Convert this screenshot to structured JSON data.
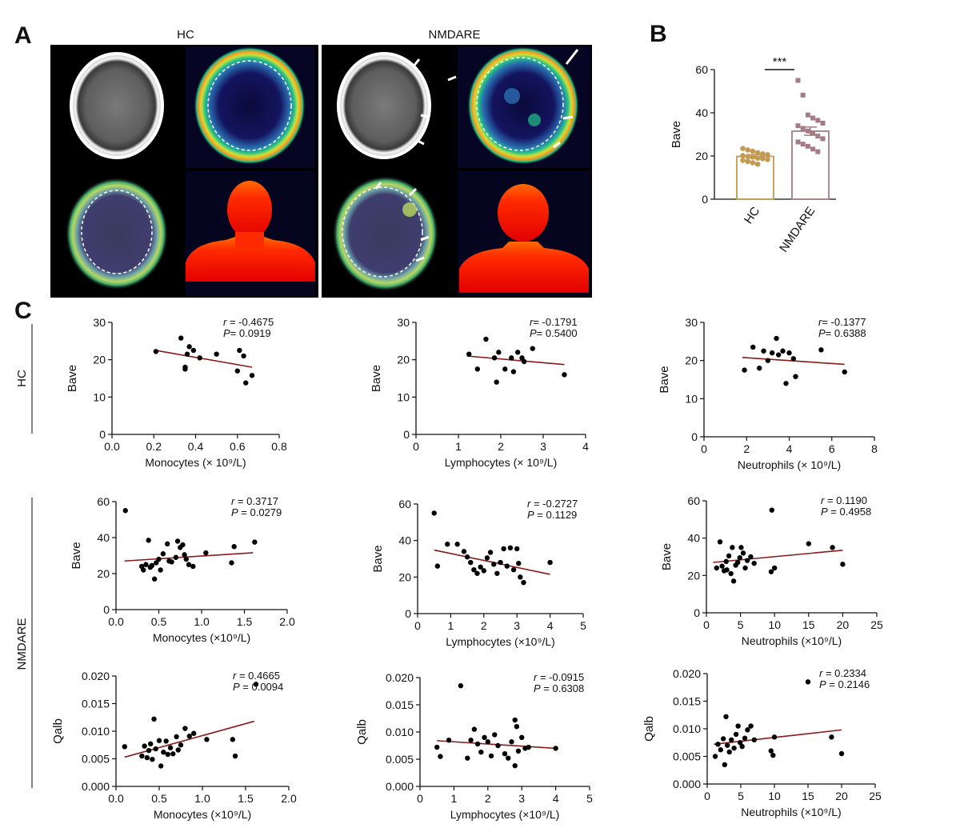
{
  "figure": {
    "panel_letters": [
      "A",
      "B",
      "C"
    ],
    "panelA": {
      "col_labels": [
        "HC",
        "NMDARE"
      ]
    },
    "row_labels": [
      "HC",
      "NMDARE"
    ]
  },
  "chart_data": [
    {
      "id": "B",
      "type": "bar",
      "categories": [
        "HC",
        "NMDARE"
      ],
      "values": [
        19.8,
        31.5
      ],
      "errors": [
        0.8,
        1.9
      ],
      "points": [
        [
          23.5,
          22.8,
          22.2,
          21.5,
          21.0,
          20.6,
          20.2,
          19.8,
          19.5,
          19.0,
          18.8,
          18.4,
          18.0,
          17.5,
          16.9,
          16.2
        ],
        [
          55.0,
          48.2,
          39.0,
          37.6,
          36.5,
          35.2,
          34.0,
          32.8,
          31.6,
          30.5,
          29.2,
          28.0,
          26.5,
          25.5,
          24.5,
          23.2,
          22.0
        ]
      ],
      "colors": [
        "#c29a52",
        "#a47c84"
      ],
      "significance": "***",
      "ylabel": "Bave",
      "ylim": [
        0,
        60
      ],
      "yticks": [
        0,
        20,
        40,
        60
      ]
    },
    {
      "id": "C_HC_Mono",
      "type": "scatter",
      "xlabel": "Monocytes (× 10⁹/L)",
      "ylabel": "Bave",
      "xlim": [
        0,
        0.8
      ],
      "xticks": [
        "0.0",
        "0.2",
        "0.4",
        "0.6",
        "0.8"
      ],
      "ylim": [
        0,
        30
      ],
      "yticks": [
        "0",
        "10",
        "20",
        "30"
      ],
      "r_label": "r",
      "r_text": " = -0.4675",
      "p_label": "P",
      "p_text": "= 0.0919",
      "fit": [
        [
          0.2,
          22.6
        ],
        [
          0.67,
          18.0
        ]
      ],
      "points": [
        [
          0.21,
          22.2
        ],
        [
          0.33,
          25.8
        ],
        [
          0.35,
          17.5
        ],
        [
          0.35,
          18.0
        ],
        [
          0.36,
          21.5
        ],
        [
          0.37,
          23.5
        ],
        [
          0.39,
          22.5
        ],
        [
          0.42,
          20.5
        ],
        [
          0.5,
          21.5
        ],
        [
          0.6,
          17.0
        ],
        [
          0.61,
          22.5
        ],
        [
          0.63,
          21.0
        ],
        [
          0.64,
          13.8
        ],
        [
          0.67,
          15.8
        ]
      ]
    },
    {
      "id": "C_HC_Lymph",
      "type": "scatter",
      "xlabel": "Lymphocytes (× 10⁹/L)",
      "ylabel": "Bave",
      "xlim": [
        0,
        4
      ],
      "xticks": [
        "0",
        "1",
        "2",
        "3",
        "4"
      ],
      "ylim": [
        0,
        30
      ],
      "yticks": [
        "0",
        "10",
        "20",
        "30"
      ],
      "r_label": "r",
      "r_text": "= -0.1791",
      "p_label": "P",
      "p_text": "= 0.5400",
      "fit": [
        [
          1.2,
          21.0
        ],
        [
          3.5,
          18.7
        ]
      ],
      "points": [
        [
          1.25,
          21.5
        ],
        [
          1.45,
          17.5
        ],
        [
          1.65,
          25.5
        ],
        [
          1.85,
          20.5
        ],
        [
          1.9,
          14.0
        ],
        [
          1.95,
          22.0
        ],
        [
          2.1,
          17.5
        ],
        [
          2.25,
          20.5
        ],
        [
          2.3,
          16.8
        ],
        [
          2.4,
          22.0
        ],
        [
          2.5,
          20.5
        ],
        [
          2.55,
          19.5
        ],
        [
          2.75,
          23.0
        ],
        [
          3.5,
          16.0
        ]
      ]
    },
    {
      "id": "C_HC_Neut",
      "type": "scatter",
      "xlabel": "Neutrophils (× 10⁹/L)",
      "ylabel": "Bave",
      "xlim": [
        0,
        8
      ],
      "xticks": [
        "0",
        "2",
        "4",
        "6",
        "8"
      ],
      "ylim": [
        0,
        30
      ],
      "yticks": [
        "0",
        "10",
        "20",
        "30"
      ],
      "r_label": "r",
      "r_text": "= -0.1377",
      "p_label": "P",
      "p_text": "= 0.6388",
      "fit": [
        [
          1.8,
          20.8
        ],
        [
          6.6,
          19.0
        ]
      ],
      "points": [
        [
          1.9,
          17.5
        ],
        [
          2.3,
          23.5
        ],
        [
          2.6,
          18.0
        ],
        [
          2.8,
          22.5
        ],
        [
          3.0,
          20.0
        ],
        [
          3.2,
          22.0
        ],
        [
          3.4,
          25.8
        ],
        [
          3.5,
          21.5
        ],
        [
          3.7,
          22.5
        ],
        [
          3.85,
          14.0
        ],
        [
          4.0,
          22.0
        ],
        [
          4.2,
          20.5
        ],
        [
          4.3,
          15.8
        ],
        [
          5.5,
          22.8
        ],
        [
          6.6,
          17.0
        ]
      ]
    },
    {
      "id": "C_NM_Mono_Bave",
      "type": "scatter",
      "xlabel": "Monocytes (×10⁹/L)",
      "ylabel": "Bave",
      "xlim": [
        0,
        2.0
      ],
      "xticks": [
        "0.0",
        "0.5",
        "1.0",
        "1.5",
        "2.0"
      ],
      "ylim": [
        0,
        60
      ],
      "yticks": [
        "0",
        "20",
        "40",
        "60"
      ],
      "r_label": "r",
      "r_text": " = 0.3717",
      "p_label": "P",
      "p_text": " = 0.0279",
      "fit": [
        [
          0.1,
          27.0
        ],
        [
          1.6,
          31.6
        ]
      ],
      "points": [
        [
          0.11,
          55.0
        ],
        [
          0.3,
          24.0
        ],
        [
          0.32,
          22.0
        ],
        [
          0.35,
          25.0
        ],
        [
          0.38,
          38.5
        ],
        [
          0.4,
          23.5
        ],
        [
          0.42,
          24.5
        ],
        [
          0.45,
          17.0
        ],
        [
          0.47,
          26.0
        ],
        [
          0.5,
          28.0
        ],
        [
          0.52,
          22.0
        ],
        [
          0.55,
          31.0
        ],
        [
          0.6,
          36.5
        ],
        [
          0.62,
          27.0
        ],
        [
          0.65,
          26.5
        ],
        [
          0.7,
          29.0
        ],
        [
          0.72,
          38.0
        ],
        [
          0.75,
          34.5
        ],
        [
          0.78,
          36.0
        ],
        [
          0.8,
          30.5
        ],
        [
          0.82,
          28.0
        ],
        [
          0.85,
          25.0
        ],
        [
          0.9,
          24.0
        ],
        [
          1.05,
          31.5
        ],
        [
          1.35,
          26.0
        ],
        [
          1.38,
          35.0
        ],
        [
          1.62,
          37.5
        ]
      ]
    },
    {
      "id": "C_NM_Lymph_Bave",
      "type": "scatter",
      "xlabel": "Lymphocytes (×10⁹/L)",
      "ylabel": "Bave",
      "xlim": [
        0,
        5
      ],
      "xticks": [
        "0",
        "1",
        "2",
        "3",
        "4",
        "5"
      ],
      "ylim": [
        0,
        60
      ],
      "yticks": [
        "0",
        "20",
        "40",
        "60"
      ],
      "r_label": "r",
      "r_text": " = -0.2727",
      "p_label": "P",
      "p_text": " = 0.1129",
      "fit": [
        [
          0.5,
          34.8
        ],
        [
          4.0,
          21.5
        ]
      ],
      "points": [
        [
          0.5,
          55.0
        ],
        [
          0.6,
          26.0
        ],
        [
          0.9,
          38.0
        ],
        [
          1.2,
          38.0
        ],
        [
          1.4,
          34.0
        ],
        [
          1.5,
          31.0
        ],
        [
          1.6,
          28.0
        ],
        [
          1.7,
          24.0
        ],
        [
          1.8,
          22.0
        ],
        [
          1.9,
          25.5
        ],
        [
          2.0,
          23.5
        ],
        [
          2.1,
          30.5
        ],
        [
          2.2,
          33.5
        ],
        [
          2.3,
          27.0
        ],
        [
          2.4,
          22.0
        ],
        [
          2.5,
          28.0
        ],
        [
          2.6,
          35.5
        ],
        [
          2.7,
          26.0
        ],
        [
          2.8,
          36.0
        ],
        [
          2.9,
          24.0
        ],
        [
          3.0,
          35.5
        ],
        [
          3.05,
          27.5
        ],
        [
          3.1,
          20.0
        ],
        [
          3.2,
          17.0
        ],
        [
          4.0,
          28.0
        ]
      ]
    },
    {
      "id": "C_NM_Neut_Bave",
      "type": "scatter",
      "xlabel": "Neutrophils (×10⁹/L)",
      "ylabel": "Bave",
      "xlim": [
        0,
        25
      ],
      "xticks": [
        "0",
        "5",
        "10",
        "15",
        "20",
        "25"
      ],
      "ylim": [
        0,
        60
      ],
      "yticks": [
        "0",
        "20",
        "40",
        "60"
      ],
      "r_label": "r",
      "r_text": " = 0.1190",
      "p_label": "P",
      "p_text": " = 0.4958",
      "fit": [
        [
          1.0,
          27.0
        ],
        [
          20.0,
          33.5
        ]
      ],
      "points": [
        [
          1.5,
          24.0
        ],
        [
          2.0,
          38.0
        ],
        [
          2.3,
          25.0
        ],
        [
          2.6,
          22.5
        ],
        [
          2.9,
          27.5
        ],
        [
          3.0,
          23.0
        ],
        [
          3.3,
          30.5
        ],
        [
          3.6,
          21.0
        ],
        [
          3.8,
          35.0
        ],
        [
          4.0,
          17.0
        ],
        [
          4.3,
          25.5
        ],
        [
          4.6,
          27.0
        ],
        [
          4.9,
          29.5
        ],
        [
          5.1,
          35.0
        ],
        [
          5.4,
          32.0
        ],
        [
          5.7,
          24.0
        ],
        [
          6.0,
          28.0
        ],
        [
          6.5,
          30.0
        ],
        [
          7.0,
          26.5
        ],
        [
          9.5,
          22.0
        ],
        [
          9.6,
          55.0
        ],
        [
          10.0,
          24.0
        ],
        [
          15.0,
          37.0
        ],
        [
          18.5,
          35.0
        ],
        [
          20.0,
          26.0
        ]
      ]
    },
    {
      "id": "C_NM_Mono_Qalb",
      "type": "scatter",
      "xlabel": "Monocytes (×10⁹/L)",
      "ylabel": "Qalb",
      "xlim": [
        0,
        2.0
      ],
      "xticks": [
        "0.0",
        "0.5",
        "1.0",
        "1.5",
        "2.0"
      ],
      "ylim": [
        0,
        0.02
      ],
      "yticks": [
        "0.000",
        "0.005",
        "0.010",
        "0.015",
        "0.020"
      ],
      "r_label": "r",
      "r_text": " = 0.4665",
      "p_label": "P",
      "p_text": " = 0.0094",
      "fit": [
        [
          0.1,
          0.0053
        ],
        [
          1.6,
          0.0118
        ]
      ],
      "points": [
        [
          0.1,
          0.0072
        ],
        [
          0.3,
          0.0055
        ],
        [
          0.33,
          0.0073
        ],
        [
          0.36,
          0.0052
        ],
        [
          0.38,
          0.0065
        ],
        [
          0.4,
          0.0077
        ],
        [
          0.42,
          0.0049
        ],
        [
          0.44,
          0.0122
        ],
        [
          0.46,
          0.0068
        ],
        [
          0.5,
          0.0083
        ],
        [
          0.52,
          0.0037
        ],
        [
          0.55,
          0.0062
        ],
        [
          0.58,
          0.0082
        ],
        [
          0.6,
          0.0058
        ],
        [
          0.63,
          0.007
        ],
        [
          0.66,
          0.0059
        ],
        [
          0.7,
          0.009
        ],
        [
          0.72,
          0.0066
        ],
        [
          0.75,
          0.0075
        ],
        [
          0.8,
          0.0105
        ],
        [
          0.85,
          0.0091
        ],
        [
          0.9,
          0.0096
        ],
        [
          1.05,
          0.0085
        ],
        [
          1.35,
          0.0085
        ],
        [
          1.38,
          0.0055
        ],
        [
          1.62,
          0.0185
        ]
      ]
    },
    {
      "id": "C_NM_Lymph_Qalb",
      "type": "scatter",
      "xlabel": "Lymphocytes (×10⁹/L)",
      "ylabel": "Qalb",
      "xlim": [
        0,
        5
      ],
      "xticks": [
        "0",
        "1",
        "2",
        "3",
        "4",
        "5"
      ],
      "ylim": [
        0,
        0.02
      ],
      "yticks": [
        "0.000",
        "0.005",
        "0.010",
        "0.015",
        "0.020"
      ],
      "r_label": "r",
      "r_text": " = -0.0915",
      "p_label": "P",
      "p_text": " = 0.6308",
      "fit": [
        [
          0.5,
          0.0084
        ],
        [
          4.0,
          0.007
        ]
      ],
      "points": [
        [
          0.5,
          0.0072
        ],
        [
          0.6,
          0.0055
        ],
        [
          0.85,
          0.0085
        ],
        [
          1.2,
          0.0185
        ],
        [
          1.4,
          0.0052
        ],
        [
          1.5,
          0.0085
        ],
        [
          1.6,
          0.0105
        ],
        [
          1.7,
          0.0078
        ],
        [
          1.8,
          0.0063
        ],
        [
          1.9,
          0.009
        ],
        [
          2.0,
          0.0082
        ],
        [
          2.1,
          0.0056
        ],
        [
          2.2,
          0.0095
        ],
        [
          2.3,
          0.0075
        ],
        [
          2.5,
          0.006
        ],
        [
          2.6,
          0.0052
        ],
        [
          2.7,
          0.0082
        ],
        [
          2.8,
          0.0122
        ],
        [
          2.85,
          0.011
        ],
        [
          2.9,
          0.0065
        ],
        [
          3.0,
          0.009
        ],
        [
          3.1,
          0.007
        ],
        [
          3.2,
          0.0072
        ],
        [
          2.8,
          0.0038
        ],
        [
          4.0,
          0.007
        ]
      ]
    },
    {
      "id": "C_NM_Neut_Qalb",
      "type": "scatter",
      "xlabel": "Neutrophils (×10⁹/L)",
      "ylabel": "Qalb",
      "xlim": [
        0,
        25
      ],
      "xticks": [
        "0",
        "5",
        "10",
        "15",
        "20",
        "25"
      ],
      "ylim": [
        0,
        0.02
      ],
      "yticks": [
        "0.000",
        "0.005",
        "0.010",
        "0.015",
        "0.020"
      ],
      "r_label": "r",
      "r_text": " = 0.2334",
      "p_label": "P",
      "p_text": " = 0.2146",
      "fit": [
        [
          1.0,
          0.0072
        ],
        [
          20.0,
          0.0098
        ]
      ],
      "points": [
        [
          1.2,
          0.005
        ],
        [
          1.6,
          0.0072
        ],
        [
          2.0,
          0.0062
        ],
        [
          2.4,
          0.0082
        ],
        [
          2.6,
          0.0035
        ],
        [
          2.8,
          0.0122
        ],
        [
          3.0,
          0.007
        ],
        [
          3.3,
          0.0058
        ],
        [
          3.6,
          0.008
        ],
        [
          4.0,
          0.0065
        ],
        [
          4.3,
          0.009
        ],
        [
          4.6,
          0.0105
        ],
        [
          4.9,
          0.0075
        ],
        [
          5.2,
          0.0068
        ],
        [
          5.6,
          0.0083
        ],
        [
          6.0,
          0.0098
        ],
        [
          6.5,
          0.0105
        ],
        [
          7.0,
          0.008
        ],
        [
          9.5,
          0.006
        ],
        [
          9.8,
          0.0052
        ],
        [
          10.0,
          0.0085
        ],
        [
          15.0,
          0.0185
        ],
        [
          18.5,
          0.0085
        ],
        [
          20.0,
          0.0055
        ]
      ]
    }
  ]
}
